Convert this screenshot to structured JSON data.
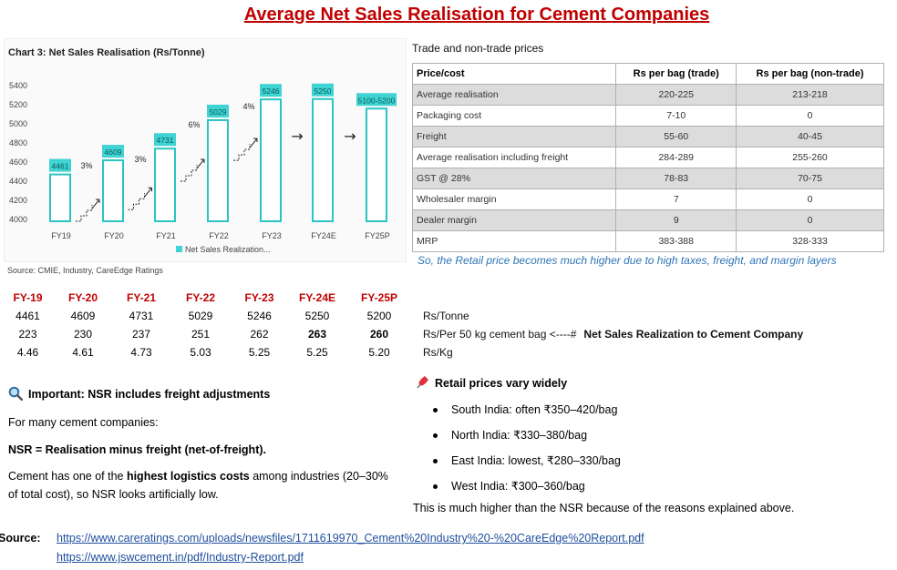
{
  "page": {
    "title": "Average Net Sales Realisation for Cement Companies"
  },
  "chart_data": {
    "type": "bar",
    "title": "Chart 3: Net Sales Realisation (Rs/Tonne)",
    "categories": [
      "FY19",
      "FY20",
      "FY21",
      "FY22",
      "FY23",
      "FY24E",
      "FY25P"
    ],
    "values": [
      4461,
      4609,
      4731,
      5029,
      5246,
      5250,
      5150
    ],
    "value_labels": [
      "4461",
      "4609",
      "4731",
      "5029",
      "5246",
      "5250",
      "5100-5200"
    ],
    "y_ticks": [
      4000,
      4200,
      4400,
      4600,
      4800,
      5000,
      5200,
      5400
    ],
    "ylim": [
      3900,
      5450
    ],
    "growth_labels": [
      "3%",
      "3%",
      "6%",
      "4%"
    ],
    "flat_arrows": [
      "→",
      "→"
    ],
    "legend": "Net Sales Realization...",
    "legend_position": "bottom",
    "source": "Source: CMIE, Industry, CareEdge Ratings",
    "colors": {
      "bar_outline": "#2bc4c4",
      "label_fill": "#3fd3d3",
      "arrow": "#222222"
    }
  },
  "price_table": {
    "title": "Trade and non-trade prices",
    "headers": [
      "Price/cost",
      "Rs per bag (trade)",
      "Rs per bag (non-trade)"
    ],
    "rows": [
      [
        "Average realisation",
        "220-225",
        "213-218"
      ],
      [
        "Packaging cost",
        "7-10",
        "0"
      ],
      [
        "Freight",
        "55-60",
        "40-45"
      ],
      [
        "Average realisation including freight",
        "284-289",
        "255-260"
      ],
      [
        "GST @ 28%",
        "78-83",
        "70-75"
      ],
      [
        "Wholesaler margin",
        "7",
        "0"
      ],
      [
        "Dealer margin",
        "9",
        "0"
      ],
      [
        "MRP",
        "383-388",
        "328-333"
      ]
    ],
    "note": "So, the Retail price becomes much higher due to high taxes, freight, and margin layers"
  },
  "summary": {
    "years": [
      "FY-19",
      "FY-20",
      "FY-21",
      "FY-22",
      "FY-23",
      "FY-24E",
      "FY-25P"
    ],
    "per_tonne": [
      "4461",
      "4609",
      "4731",
      "5029",
      "5246",
      "5250",
      "5200"
    ],
    "per_bag": [
      "223",
      "230",
      "237",
      "251",
      "262",
      "263",
      "260"
    ],
    "per_kg": [
      "4.46",
      "4.61",
      "4.73",
      "5.03",
      "5.25",
      "5.25",
      "5.20"
    ],
    "unit_tonne": "Rs/Tonne",
    "unit_bag": "Rs/Per 50 kg cement bag <----#",
    "unit_bag_note": "Net Sales Realization to Cement Company",
    "unit_kg": "Rs/Kg"
  },
  "important": {
    "icon": "magnifier-icon",
    "title": "Important: NSR includes freight adjustments",
    "line1": "For many cement companies:",
    "line2": "NSR = Realisation minus freight (net-of-freight).",
    "line3_a": "Cement has one of the ",
    "line3_b": "highest logistics costs",
    "line3_c": " among industries (20–30% of total cost), so NSR looks artificially low."
  },
  "retail": {
    "icon": "pushpin-icon",
    "title": "Retail prices vary widely",
    "items": [
      "South India: often ₹350–420/bag",
      "North India: ₹330–380/bag",
      "East India: lowest, ₹280–330/bag",
      "West India: ₹300–360/bag"
    ],
    "conclusion": "This is much higher than the NSR because of the reasons explained above."
  },
  "sources": {
    "label": "Source:",
    "links": [
      "https://www.careratings.com/uploads/newsfiles/1711619970_Cement%20Industry%20-%20CareEdge%20Report.pdf",
      "https://www.jswcement.in/pdf/Industry-Report.pdf"
    ]
  }
}
